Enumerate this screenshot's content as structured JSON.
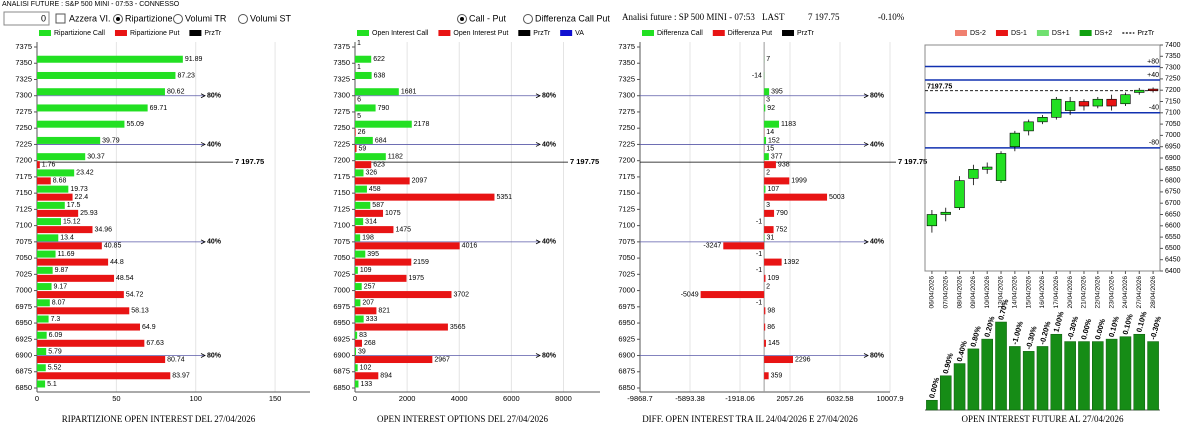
{
  "header": {
    "title": "ANALISI FUTURE : S&P 500 MINI - 07:53 - CONNESSO"
  },
  "controls": {
    "input": "0",
    "checkbox": "Azzera VI.",
    "radios1": [
      "Ripartizione",
      "Volumi TR",
      "Volumi ST"
    ],
    "radios2": [
      "Call - Put",
      "Differenza Call Put"
    ]
  },
  "info": {
    "title": "Analisi future : SP 500 MINI - 07:53",
    "last_label": "LAST",
    "last": "7 197.75",
    "change": "-0.10%"
  },
  "chart_data": [
    {
      "type": "hbar",
      "title": "RIPARTIZIONE OPEN INTEREST DEL 27/04/2026",
      "categories": [
        7375,
        7350,
        7325,
        7300,
        7275,
        7250,
        7225,
        7200,
        7175,
        7150,
        7125,
        7100,
        7075,
        7050,
        7025,
        7000,
        6975,
        6950,
        6925,
        6900,
        6875,
        6850
      ],
      "series": [
        {
          "name": "Ripartizione Call",
          "color": "#22e022",
          "values": [
            null,
            91.89,
            87.23,
            80.62,
            69.71,
            55.09,
            39.79,
            30.37,
            23.42,
            19.73,
            17.5,
            15.12,
            13.4,
            11.69,
            9.87,
            9.17,
            8.07,
            7.3,
            6.09,
            5.79,
            5.52,
            5.1
          ]
        },
        {
          "name": "Ripartizione Put",
          "color": "#e81414",
          "values": [
            null,
            null,
            null,
            null,
            null,
            null,
            null,
            1.76,
            8.68,
            22.4,
            25.93,
            34.96,
            40.85,
            44.8,
            48.54,
            54.72,
            58.13,
            64.9,
            67.63,
            80.74,
            83.97,
            null
          ]
        }
      ],
      "legend_extra": [
        {
          "name": "PrzTr",
          "color": "#000000"
        }
      ],
      "xlim": [
        0,
        172
      ],
      "xticks": [
        0,
        50,
        100,
        150
      ],
      "levels": [
        {
          "value": 7300,
          "label": "80%"
        },
        {
          "value": 7225,
          "label": "40%"
        },
        {
          "value": 7075,
          "label": "40%"
        },
        {
          "value": 6900,
          "label": "80%"
        }
      ],
      "price_line": {
        "value": 7197.75,
        "label": "7 197.75"
      }
    },
    {
      "type": "hbar",
      "title": "OPEN INTEREST OPTIONS DEL 27/04/2026",
      "categories": [
        7375,
        7350,
        7325,
        7300,
        7275,
        7250,
        7225,
        7200,
        7175,
        7150,
        7125,
        7100,
        7075,
        7050,
        7025,
        7000,
        6975,
        6950,
        6925,
        6900,
        6875,
        6850
      ],
      "series": [
        {
          "name": "Open Interest Call",
          "color": "#22e022",
          "values": [
            1,
            622,
            638,
            1681,
            790,
            2178,
            684,
            1182,
            326,
            458,
            587,
            314,
            198,
            395,
            109,
            257,
            207,
            333,
            83,
            39,
            102,
            133
          ]
        },
        {
          "name": "Open Interest Put",
          "color": "#e81414",
          "values": [
            null,
            1,
            null,
            6,
            5,
            26,
            59,
            623,
            2097,
            5351,
            1075,
            1475,
            4016,
            2159,
            1975,
            3702,
            821,
            3565,
            268,
            2967,
            894,
            null
          ]
        }
      ],
      "legend_extra": [
        {
          "name": "PrzTr",
          "color": "#000000"
        },
        {
          "name": "VA",
          "color": "#1010d0"
        }
      ],
      "xlim": [
        0,
        9400
      ],
      "xticks": [
        0,
        2000,
        4000,
        6000,
        8000
      ],
      "levels": [
        {
          "value": 7300,
          "label": "80%"
        },
        {
          "value": 7225,
          "label": "40%"
        },
        {
          "value": 7075,
          "label": "40%"
        },
        {
          "value": 6900,
          "label": "80%"
        }
      ],
      "price_line": {
        "value": 7197.75,
        "label": "7 197.75"
      }
    },
    {
      "type": "hbar",
      "title": "DIFF. OPEN INTEREST TRA IL 24/04/2026 E 27/04/2026",
      "categories": [
        7375,
        7350,
        7325,
        7300,
        7275,
        7250,
        7225,
        7200,
        7175,
        7150,
        7125,
        7100,
        7075,
        7050,
        7025,
        7000,
        6975,
        6950,
        6925,
        6900,
        6875,
        6850
      ],
      "series": [
        {
          "name": "Differenza Call",
          "color": "#22e022",
          "values": [
            null,
            7,
            -14,
            395,
            92,
            1183,
            152,
            377,
            2,
            107,
            3,
            -1,
            31,
            -1,
            -1,
            2,
            -1,
            null,
            null,
            null,
            null,
            null
          ]
        },
        {
          "name": "Differenza Put",
          "color": "#e81414",
          "values": [
            null,
            null,
            null,
            3,
            null,
            14,
            15,
            938,
            1999,
            5003,
            790,
            752,
            -3247,
            1392,
            109,
            -5049,
            98,
            86,
            145,
            2296,
            359,
            null
          ]
        }
      ],
      "legend_extra": [
        {
          "name": "PrzTr",
          "color": "#000000"
        }
      ],
      "xlim": [
        -9868.7,
        10007.9
      ],
      "xticks": [
        -9868.7,
        -5893.38,
        -1918.06,
        2057.26,
        6032.58,
        10007.9
      ],
      "levels": [
        {
          "value": 7300,
          "label": "80%"
        },
        {
          "value": 7225,
          "label": "40%"
        },
        {
          "value": 7075,
          "label": "40%"
        },
        {
          "value": 6900,
          "label": "80%"
        }
      ],
      "price_line": {
        "value": 7197.75,
        "label": "7 197.75"
      }
    },
    {
      "type": "candlestick",
      "categories": [
        "06/04/2026",
        "07/04/2026",
        "08/04/2026",
        "09/04/2026",
        "10/04/2026",
        "13/04/2026",
        "14/04/2026",
        "15/04/2026",
        "16/04/2026",
        "17/04/2026",
        "20/04/2026",
        "21/04/2026",
        "22/04/2026",
        "23/04/2026",
        "24/04/2026",
        "27/04/2026",
        "28/04/2026"
      ],
      "open": [
        6600,
        6650,
        6680,
        6810,
        6850,
        6800,
        6950,
        7020,
        7060,
        7080,
        7110,
        7150,
        7130,
        7160,
        7140,
        7190,
        7205
      ],
      "high": [
        6670,
        6680,
        6820,
        6870,
        6880,
        6930,
        7020,
        7070,
        7090,
        7170,
        7170,
        7160,
        7170,
        7180,
        7190,
        7210,
        7212
      ],
      "low": [
        6570,
        6620,
        6670,
        6780,
        6830,
        6790,
        6930,
        7000,
        7050,
        7070,
        7090,
        7110,
        7120,
        7110,
        7130,
        7180,
        7190
      ],
      "close": [
        6650,
        6660,
        6800,
        6850,
        6860,
        6920,
        7010,
        7060,
        7080,
        7160,
        7150,
        7130,
        7160,
        7130,
        7180,
        7200,
        7197.75
      ],
      "up_color": "#22e022",
      "down_color": "#e81414",
      "ylim": [
        6400,
        7400
      ],
      "yticks": [
        6400,
        6450,
        6500,
        6550,
        6600,
        6650,
        6700,
        6750,
        6800,
        6850,
        6900,
        6950,
        7000,
        7050,
        7100,
        7150,
        7200,
        7250,
        7300,
        7350,
        7400
      ],
      "legend": [
        {
          "name": "DS-2",
          "color": "#f08070"
        },
        {
          "name": "DS-1",
          "color": "#e81414"
        },
        {
          "name": "DS+1",
          "color": "#70e070"
        },
        {
          "name": "DS+2",
          "color": "#10a010"
        },
        {
          "name": "PrzTr",
          "color": "#000000"
        }
      ],
      "levels": [
        {
          "value": 7305,
          "label": "+80"
        },
        {
          "value": 7245,
          "label": "+40"
        },
        {
          "value": 7100,
          "label": "-40"
        },
        {
          "value": 6945,
          "label": "-80"
        }
      ],
      "level_color": "#1030b0",
      "price_line": {
        "value": 7197.75,
        "label": "7197.75"
      }
    },
    {
      "type": "bar",
      "title": "OPEN INTEREST FUTURE AL 27/04/2026",
      "color": "#168c16",
      "values": [
        8,
        28,
        38,
        50,
        58,
        72,
        52,
        48,
        52,
        62,
        56,
        56,
        56,
        58,
        60,
        62,
        56
      ],
      "change_labels": [
        "0.00%",
        "0.90%",
        "0.40%",
        "0.80%",
        "0.20%",
        "0.70%",
        "-1.00%",
        "-0.30%",
        "-0.20%",
        "1.00%",
        "-0.30%",
        "0.00%",
        "0.00%",
        "0.10%",
        "0.10%",
        "0.10%",
        "-0.30%"
      ]
    }
  ]
}
